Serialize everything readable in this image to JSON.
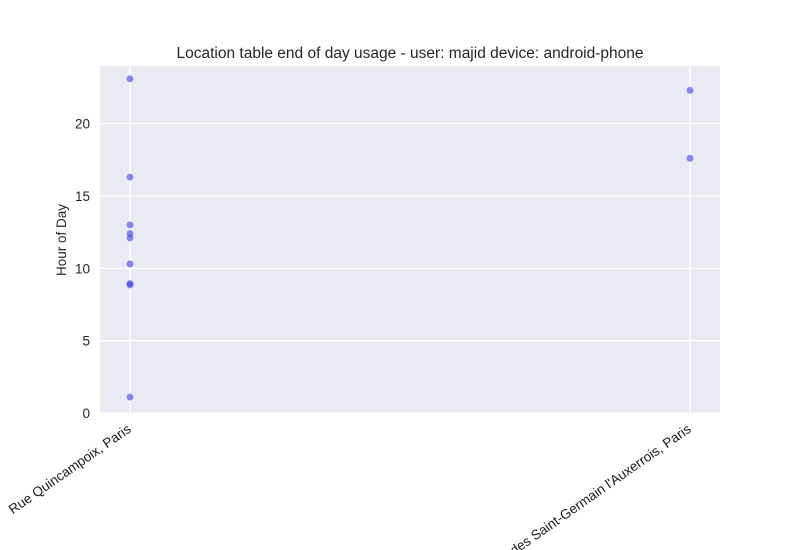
{
  "chart_data": {
    "type": "scatter",
    "title": "Location table end of day usage -  user: majid device: android-phone",
    "xlabel": "",
    "ylabel": "Hour of Day",
    "categories": [
      "Rue Quincampoix, Paris",
      "Rue des Saint-Germain l'Auxerrois, Paris"
    ],
    "yticks": [
      0,
      5,
      10,
      15,
      20
    ],
    "ylim": [
      0,
      24
    ],
    "grid": true,
    "point_color": "#3b3bf0",
    "background_color": "#eaeaf2",
    "grid_color": "#ffffff",
    "points": [
      {
        "x": "Rue Quincampoix, Paris",
        "y": 23.1
      },
      {
        "x": "Rue Quincampoix, Paris",
        "y": 16.3
      },
      {
        "x": "Rue Quincampoix, Paris",
        "y": 13.0
      },
      {
        "x": "Rue Quincampoix, Paris",
        "y": 12.4
      },
      {
        "x": "Rue Quincampoix, Paris",
        "y": 12.1
      },
      {
        "x": "Rue Quincampoix, Paris",
        "y": 10.3
      },
      {
        "x": "Rue Quincampoix, Paris",
        "y": 8.95
      },
      {
        "x": "Rue Quincampoix, Paris",
        "y": 8.85
      },
      {
        "x": "Rue Quincampoix, Paris",
        "y": 1.1
      },
      {
        "x": "Rue des Saint-Germain l'Auxerrois, Paris",
        "y": 22.3
      },
      {
        "x": "Rue des Saint-Germain l'Auxerrois, Paris",
        "y": 17.6
      }
    ]
  }
}
